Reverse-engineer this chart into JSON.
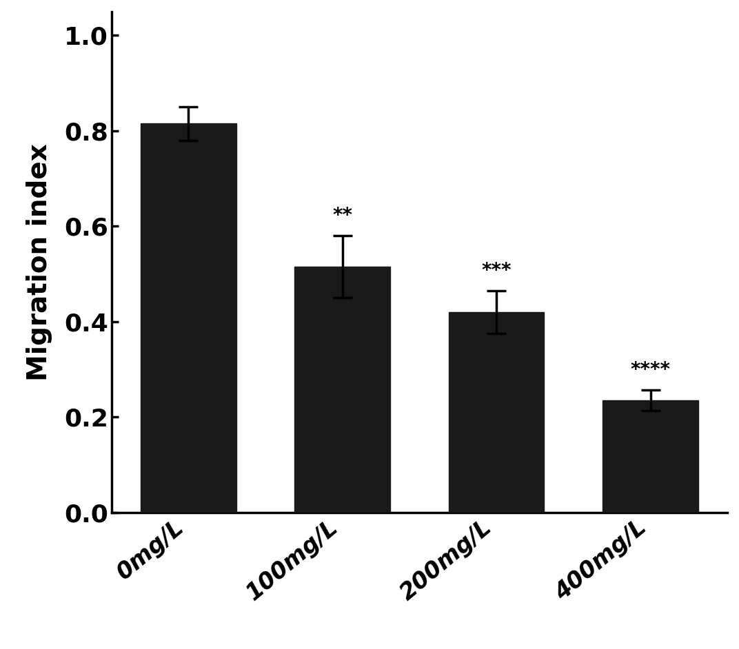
{
  "categories": [
    "0mg/L",
    "100mg/L",
    "200mg/L",
    "400mg/L"
  ],
  "values": [
    0.815,
    0.515,
    0.42,
    0.235
  ],
  "errors": [
    0.035,
    0.065,
    0.045,
    0.022
  ],
  "significance": [
    "",
    "**",
    "***",
    "****"
  ],
  "bar_color": "#1a1a1a",
  "ylabel": "Migration index",
  "ylim": [
    0.0,
    1.05
  ],
  "yticks": [
    0.0,
    0.2,
    0.4,
    0.6,
    0.8,
    1.0
  ],
  "bar_width": 0.62,
  "sig_fontsize": 20,
  "ylabel_fontsize": 28,
  "ytick_fontsize": 26,
  "xtick_fontsize": 24,
  "background_color": "#ffffff",
  "error_capsize": 10,
  "error_linewidth": 2.5,
  "spine_linewidth": 2.5,
  "bar_spacing": 1.0
}
